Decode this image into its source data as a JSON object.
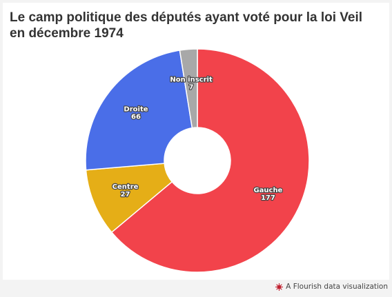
{
  "chart": {
    "title": "Le camp politique des députés ayant voté pour la loi Veil en décembre 1974"
  },
  "chart_data": {
    "type": "pie",
    "title": "Le camp politique des députés ayant voté pour la loi Veil en décembre 1974",
    "donut": true,
    "start": "top",
    "direction": "clockwise",
    "slices": [
      {
        "label": "Gauche",
        "value": 177,
        "color": "#f2434b"
      },
      {
        "label": "Centre",
        "value": 27,
        "color": "#e5ae17"
      },
      {
        "label": "Droite",
        "value": 66,
        "color": "#4a6ee8"
      },
      {
        "label": "Non inscrit",
        "value": 7,
        "color": "#a8a8a8"
      }
    ]
  },
  "footer": {
    "credit": "A Flourish data visualization",
    "icon": "flourish-logo-icon"
  }
}
